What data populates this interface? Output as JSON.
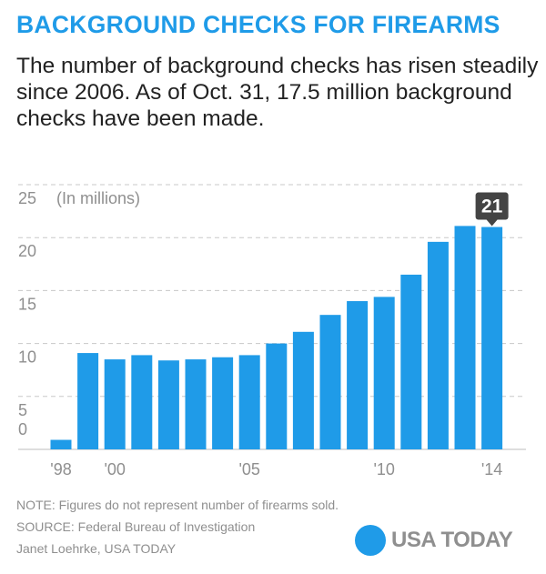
{
  "title": "BACKGROUND CHECKS FOR FIREARMS",
  "subtitle": "The number of background checks has risen steadily since 2006. As of Oct. 31, 17.5 million background checks have been made.",
  "colors": {
    "accent": "#1f9be8",
    "text": "#222222",
    "muted": "#8f8f8f",
    "callout": "#444444"
  },
  "chart_data": {
    "type": "bar",
    "unit_label": "(In millions)",
    "categories": [
      "1998",
      "1999",
      "2000",
      "2001",
      "2002",
      "2003",
      "2004",
      "2005",
      "2006",
      "2007",
      "2008",
      "2009",
      "2010",
      "2011",
      "2012",
      "2013",
      "2014"
    ],
    "values": [
      0.9,
      9.1,
      8.5,
      8.9,
      8.4,
      8.5,
      8.7,
      8.9,
      10.0,
      11.1,
      12.7,
      14.0,
      14.4,
      16.5,
      19.6,
      21.1,
      21.0
    ],
    "ylim": [
      0,
      25
    ],
    "y_ticks": [
      0,
      5,
      10,
      15,
      20,
      25
    ],
    "x_tick_labels": [
      {
        "category": "1998",
        "label": "'98"
      },
      {
        "category": "2000",
        "label": "'00"
      },
      {
        "category": "2005",
        "label": "'05"
      },
      {
        "category": "2010",
        "label": "'10"
      },
      {
        "category": "2014",
        "label": "'14"
      }
    ],
    "callout": {
      "category": "2014",
      "label": "21"
    },
    "grid": true
  },
  "notes": {
    "note": "NOTE: Figures do not represent number of firearms sold.",
    "source": "SOURCE:  Federal Bureau of Investigation",
    "credit": "Janet Loehrke, USA TODAY"
  },
  "logo": {
    "text": "USA TODAY"
  }
}
